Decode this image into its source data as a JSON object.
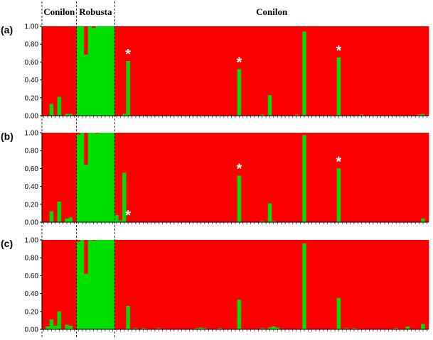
{
  "chart_data": {
    "type": "bar",
    "stacked": true,
    "n_individuals": 101,
    "group_labels": [
      "Conilon",
      "Robusta",
      "Conilon"
    ],
    "group_boundaries": [
      0,
      9,
      19,
      101
    ],
    "yticks": [
      "0.00",
      "0.20",
      "0.40",
      "0.60",
      "0.80",
      "1.00"
    ],
    "ylim": [
      0,
      1
    ],
    "colors": {
      "cluster1": "#ff0000",
      "cluster2": "#00e000"
    },
    "marked_symbol": "*",
    "panels": [
      {
        "label": "(a)",
        "green_values": [
          0,
          0,
          0.13,
          0,
          0.21,
          0,
          0.02,
          0.02,
          0,
          1,
          1,
          0.68,
          1,
          0.98,
          1,
          1,
          1,
          1,
          1,
          0,
          0,
          0.02,
          0.61,
          0,
          0,
          0,
          0,
          0,
          0,
          0,
          0,
          0,
          0,
          0,
          0,
          0,
          0,
          0,
          0,
          0,
          0,
          0,
          0,
          0,
          0,
          0,
          0,
          0,
          0,
          0,
          0,
          0.52,
          0,
          0,
          0,
          0,
          0,
          0.01,
          0,
          0.23,
          0,
          0,
          0,
          0,
          0,
          0,
          0.01,
          0,
          0.94,
          0,
          0,
          0,
          0,
          0,
          0,
          0,
          0,
          0.65,
          0,
          0,
          0,
          0,
          0,
          0.01,
          0,
          0,
          0,
          0,
          0,
          0,
          0,
          0,
          0,
          0,
          0,
          0,
          0,
          0,
          0.01,
          0.02,
          0
        ],
        "marked": [
          22,
          51,
          77
        ]
      },
      {
        "label": "(b)",
        "green_values": [
          0,
          0,
          0.12,
          0,
          0.23,
          0,
          0.04,
          0.05,
          0,
          0.98,
          1,
          0.64,
          1,
          1,
          0.99,
          1,
          1,
          1,
          1,
          0.08,
          0.02,
          0.55,
          0,
          0,
          0,
          0,
          0,
          0,
          0,
          0,
          0,
          0,
          0,
          0,
          0,
          0,
          0,
          0,
          0,
          0,
          0,
          0,
          0,
          0,
          0,
          0,
          0,
          0,
          0,
          0,
          0,
          0.52,
          0,
          0,
          0,
          0,
          0,
          0.01,
          0,
          0.21,
          0.01,
          0,
          0,
          0,
          0,
          0,
          0,
          0,
          0.97,
          0,
          0,
          0,
          0,
          0,
          0,
          0,
          0,
          0.6,
          0,
          0,
          0,
          0,
          0,
          0,
          0,
          0,
          0,
          0,
          0,
          0,
          0,
          0,
          0,
          0,
          0,
          0,
          0,
          0,
          0,
          0.04,
          0
        ],
        "marked": [
          22,
          51,
          77
        ]
      },
      {
        "label": "(c)",
        "green_values": [
          0,
          0.03,
          0.11,
          0.04,
          0.2,
          0,
          0.05,
          0.04,
          0,
          0.98,
          1,
          0.62,
          1,
          0.99,
          1,
          1,
          1,
          1,
          1,
          0,
          0,
          0,
          0.26,
          0,
          0.01,
          0,
          0.01,
          0,
          0,
          0,
          0.01,
          0,
          0,
          0,
          0,
          0,
          0,
          0,
          0,
          0,
          0.01,
          0.02,
          0.01,
          0,
          0,
          0,
          0.01,
          0,
          0,
          0,
          0,
          0.33,
          0,
          0,
          0,
          0,
          0,
          0.01,
          0,
          0.02,
          0.03,
          0.02,
          0,
          0,
          0,
          0,
          0,
          0,
          0.96,
          0,
          0,
          0,
          0,
          0,
          0,
          0,
          0,
          0.35,
          0,
          0.01,
          0,
          0.01,
          0,
          0,
          0,
          0,
          0,
          0,
          0,
          0,
          0,
          0,
          0.01,
          0,
          0,
          0.03,
          0,
          0,
          0,
          0.06,
          0
        ],
        "marked": []
      }
    ]
  }
}
